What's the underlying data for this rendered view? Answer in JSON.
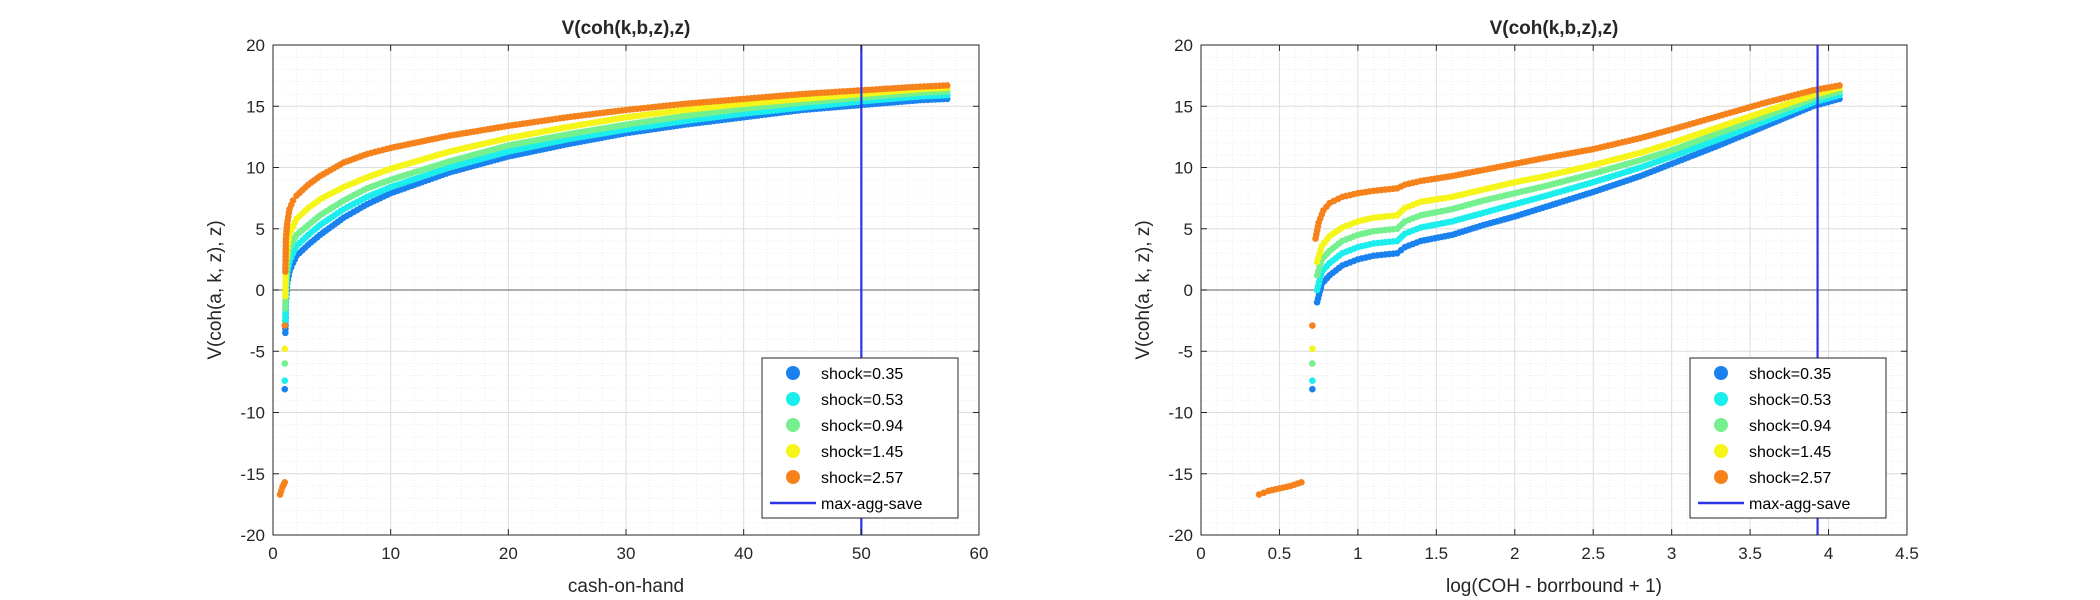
{
  "colors": {
    "shock_0.35": "#1a82ef",
    "shock_0.53": "#1ceeee",
    "shock_0.94": "#74f08e",
    "shock_1.45": "#f5f51a",
    "shock_2.57": "#f5821a",
    "max_agg_save": "#2b35e8",
    "zero_line": "#7f7f7f"
  },
  "chart_data": [
    {
      "type": "scatter",
      "title": "V(coh(k,b,z),z)",
      "xlabel": "cash-on-hand",
      "ylabel": "V(coh(a, k, z), z)",
      "xlim": [
        0,
        60
      ],
      "ylim": [
        -20,
        20
      ],
      "xticks": [
        "0",
        "10",
        "20",
        "30",
        "40",
        "50",
        "60"
      ],
      "yticks": [
        "-20",
        "-15",
        "-10",
        "-5",
        "0",
        "5",
        "10",
        "15",
        "20"
      ],
      "grid": true,
      "minor_grid": true,
      "legend_position": "bottom-right",
      "vline": {
        "name": "max-agg-save",
        "x": 50
      },
      "hline": {
        "y": 0
      },
      "series": [
        {
          "name": "shock=0.35",
          "color_key": "shock_0.35",
          "x": [
            1.0,
            1.05,
            1.1,
            1.2,
            1.4,
            1.7,
            2.0,
            3.0,
            4.0,
            6.0,
            8.0,
            10.0,
            15.0,
            20.0,
            25.0,
            30.0,
            35.0,
            40.0,
            45.0,
            50.0,
            55.0,
            57.3
          ],
          "y": [
            -8.1,
            -3.5,
            -1.0,
            0.5,
            1.5,
            2.2,
            2.8,
            3.7,
            4.5,
            5.9,
            7.0,
            7.9,
            9.6,
            10.9,
            11.9,
            12.8,
            13.5,
            14.1,
            14.7,
            15.1,
            15.5,
            15.6
          ]
        },
        {
          "name": "shock=0.53",
          "color_key": "shock_0.53",
          "x": [
            1.0,
            1.05,
            1.1,
            1.2,
            1.4,
            1.7,
            2.0,
            3.0,
            4.0,
            6.0,
            8.0,
            10.0,
            15.0,
            20.0,
            25.0,
            30.0,
            35.0,
            40.0,
            45.0,
            50.0,
            55.0,
            57.3
          ],
          "y": [
            -7.4,
            -2.5,
            -0.2,
            1.3,
            2.3,
            3.0,
            3.6,
            4.5,
            5.3,
            6.6,
            7.6,
            8.4,
            10.0,
            11.3,
            12.3,
            13.1,
            13.8,
            14.4,
            14.9,
            15.4,
            15.8,
            15.9
          ]
        },
        {
          "name": "shock=0.94",
          "color_key": "shock_0.94",
          "x": [
            1.0,
            1.05,
            1.1,
            1.2,
            1.4,
            1.7,
            2.0,
            3.0,
            4.0,
            6.0,
            8.0,
            10.0,
            15.0,
            20.0,
            25.0,
            30.0,
            35.0,
            40.0,
            45.0,
            50.0,
            55.0,
            57.3
          ],
          "y": [
            -6.0,
            -1.5,
            1.0,
            2.3,
            3.3,
            4.0,
            4.5,
            5.3,
            6.1,
            7.3,
            8.3,
            9.0,
            10.5,
            11.8,
            12.7,
            13.5,
            14.2,
            14.8,
            15.3,
            15.7,
            16.1,
            16.2
          ]
        },
        {
          "name": "shock=1.45",
          "color_key": "shock_1.45",
          "x": [
            1.0,
            1.05,
            1.1,
            1.2,
            1.4,
            1.7,
            2.0,
            3.0,
            4.0,
            6.0,
            8.0,
            10.0,
            15.0,
            20.0,
            25.0,
            30.0,
            35.0,
            40.0,
            45.0,
            50.0,
            55.0,
            57.3
          ],
          "y": [
            -4.8,
            -0.5,
            2.0,
            3.4,
            4.5,
            5.2,
            5.8,
            6.7,
            7.4,
            8.4,
            9.2,
            9.9,
            11.3,
            12.4,
            13.3,
            14.1,
            14.7,
            15.2,
            15.6,
            16.0,
            16.4,
            16.5
          ]
        },
        {
          "name": "shock=2.57",
          "color_key": "shock_2.57",
          "x": [
            0.6,
            0.7,
            0.8,
            0.9,
            1.0,
            1.0,
            1.05,
            1.1,
            1.2,
            1.4,
            1.7,
            2.0,
            3.0,
            4.0,
            6.0,
            8.0,
            10.0,
            15.0,
            20.0,
            25.0,
            30.0,
            35.0,
            40.0,
            45.0,
            50.0,
            55.0,
            57.3
          ],
          "y": [
            -16.7,
            -16.4,
            -16.1,
            -15.9,
            -15.7,
            -2.9,
            1.5,
            4.2,
            5.4,
            6.6,
            7.3,
            7.7,
            8.6,
            9.3,
            10.4,
            11.1,
            11.6,
            12.6,
            13.4,
            14.1,
            14.7,
            15.2,
            15.6,
            16.0,
            16.3,
            16.6,
            16.7
          ]
        }
      ]
    },
    {
      "type": "scatter",
      "title": "V(coh(k,b,z),z)",
      "xlabel": "log(COH - borrbound + 1)",
      "ylabel": "V(coh(a, k, z), z)",
      "xlim": [
        0,
        4.5
      ],
      "ylim": [
        -20,
        20
      ],
      "xticks": [
        "0",
        "0.5",
        "1",
        "1.5",
        "2",
        "2.5",
        "3",
        "3.5",
        "4",
        "4.5"
      ],
      "yticks": [
        "-20",
        "-15",
        "-10",
        "-5",
        "0",
        "5",
        "10",
        "15",
        "20"
      ],
      "grid": true,
      "minor_grid": true,
      "legend_position": "bottom-right",
      "vline": {
        "name": "max-agg-save",
        "x": 3.93
      },
      "hline": {
        "y": 0
      },
      "series": [
        {
          "name": "shock=0.35",
          "color_key": "shock_0.35",
          "x": [
            0.71,
            0.74,
            0.77,
            0.82,
            0.9,
            1.0,
            1.1,
            1.25,
            1.3,
            1.4,
            1.6,
            1.8,
            2.0,
            2.2,
            2.5,
            2.8,
            3.0,
            3.3,
            3.6,
            3.9,
            4.07
          ],
          "y": [
            -8.1,
            -1.0,
            0.5,
            1.2,
            2.0,
            2.5,
            2.8,
            3.0,
            3.5,
            4.0,
            4.5,
            5.3,
            6.0,
            6.8,
            8.0,
            9.3,
            10.3,
            11.8,
            13.4,
            15.0,
            15.6
          ]
        },
        {
          "name": "shock=0.53",
          "color_key": "shock_0.53",
          "x": [
            0.71,
            0.74,
            0.77,
            0.82,
            0.9,
            1.0,
            1.1,
            1.25,
            1.3,
            1.4,
            1.6,
            1.8,
            2.0,
            2.2,
            2.5,
            2.8,
            3.0,
            3.3,
            3.6,
            3.9,
            4.07
          ],
          "y": [
            -7.4,
            0.0,
            1.5,
            2.2,
            3.0,
            3.5,
            3.8,
            4.0,
            4.6,
            5.1,
            5.6,
            6.3,
            7.0,
            7.7,
            8.8,
            10.0,
            10.9,
            12.3,
            13.8,
            15.3,
            15.9
          ]
        },
        {
          "name": "shock=0.94",
          "color_key": "shock_0.94",
          "x": [
            0.71,
            0.74,
            0.77,
            0.82,
            0.9,
            1.0,
            1.1,
            1.25,
            1.3,
            1.4,
            1.6,
            1.8,
            2.0,
            2.2,
            2.5,
            2.8,
            3.0,
            3.3,
            3.6,
            3.9,
            4.07
          ],
          "y": [
            -6.0,
            1.2,
            2.5,
            3.2,
            4.0,
            4.5,
            4.8,
            5.0,
            5.6,
            6.1,
            6.6,
            7.3,
            7.9,
            8.5,
            9.5,
            10.6,
            11.4,
            12.8,
            14.2,
            15.6,
            16.2
          ]
        },
        {
          "name": "shock=1.45",
          "color_key": "shock_1.45",
          "x": [
            0.71,
            0.74,
            0.77,
            0.82,
            0.9,
            1.0,
            1.1,
            1.25,
            1.3,
            1.4,
            1.6,
            1.8,
            2.0,
            2.2,
            2.5,
            2.8,
            3.0,
            3.3,
            3.6,
            3.9,
            4.07
          ],
          "y": [
            -4.8,
            2.3,
            3.6,
            4.4,
            5.1,
            5.6,
            5.9,
            6.1,
            6.7,
            7.2,
            7.6,
            8.2,
            8.8,
            9.3,
            10.2,
            11.2,
            12.0,
            13.3,
            14.6,
            15.9,
            16.5
          ]
        },
        {
          "name": "shock=2.57",
          "color_key": "shock_2.57",
          "x": [
            0.37,
            0.43,
            0.5,
            0.57,
            0.64,
            0.71,
            0.73,
            0.75,
            0.78,
            0.82,
            0.9,
            1.0,
            1.1,
            1.25,
            1.3,
            1.4,
            1.6,
            1.8,
            2.0,
            2.2,
            2.5,
            2.8,
            3.0,
            3.3,
            3.6,
            3.9,
            4.07
          ],
          "y": [
            -16.7,
            -16.4,
            -16.2,
            -16.0,
            -15.7,
            -2.9,
            4.2,
            5.5,
            6.5,
            7.1,
            7.6,
            7.9,
            8.1,
            8.3,
            8.6,
            8.9,
            9.3,
            9.8,
            10.3,
            10.8,
            11.5,
            12.4,
            13.1,
            14.2,
            15.3,
            16.3,
            16.7
          ]
        }
      ]
    }
  ]
}
